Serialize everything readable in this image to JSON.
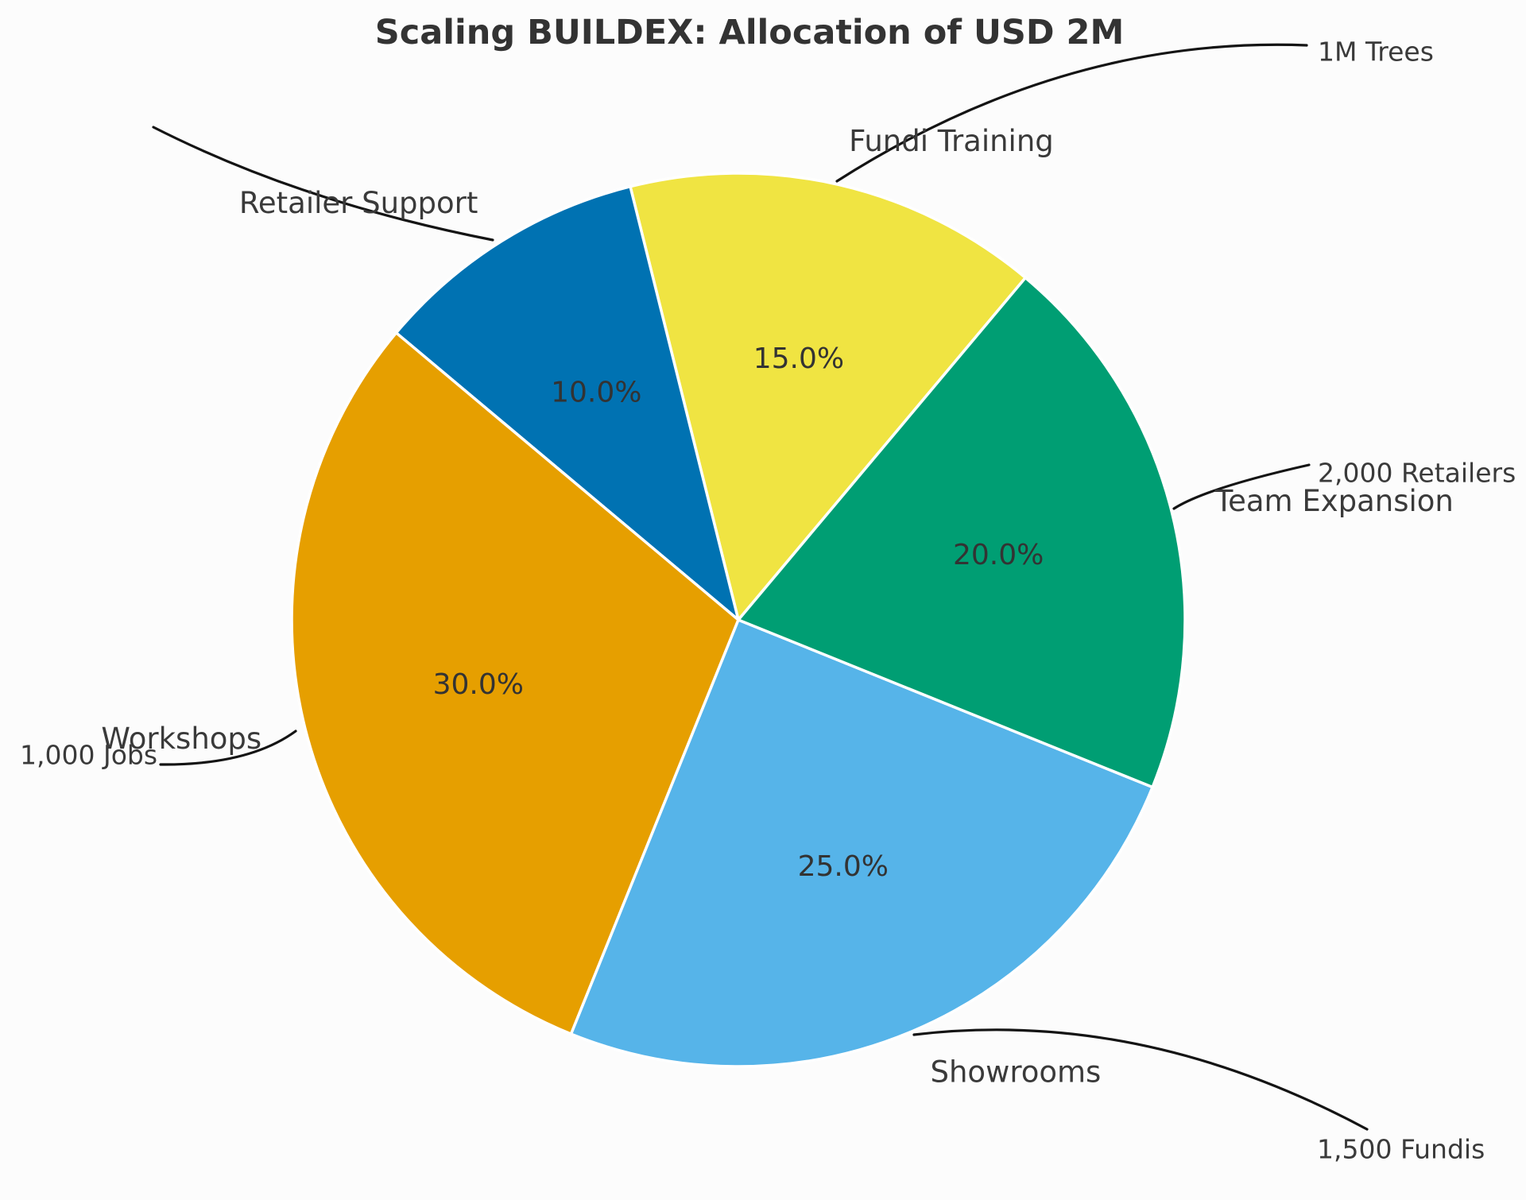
{
  "chart_data": {
    "type": "pie",
    "title": "Scaling BUILDEX: Allocation of USD 2M",
    "legend": "none",
    "start_angle_deg": 50,
    "counterclockwise": true,
    "slices": [
      {
        "label": "Fundi Training",
        "value": 15.0,
        "pct_label": "15.0%",
        "color": "#F0E442"
      },
      {
        "label": "Retailer Support",
        "value": 10.0,
        "pct_label": "10.0%",
        "color": "#0072B2"
      },
      {
        "label": "Workshops",
        "value": 30.0,
        "pct_label": "30.0%",
        "color": "#E69F00"
      },
      {
        "label": "Showrooms",
        "value": 25.0,
        "pct_label": "25.0%",
        "color": "#56B4E9"
      },
      {
        "label": "Team Expansion",
        "value": 20.0,
        "pct_label": "20.0%",
        "color": "#009E73"
      }
    ],
    "annotations": [
      {
        "label": "1M Trees",
        "points_to": "Fundi Training"
      },
      {
        "label": "",
        "points_to": "Retailer Support"
      },
      {
        "label": "2,000 Retailers",
        "points_to": "Team Expansion"
      },
      {
        "label": "1,000 Jobs",
        "points_to": "Workshops"
      },
      {
        "label": "1,500 Fundis",
        "points_to": "Showrooms"
      }
    ],
    "colors": {
      "text": "#3a3a3a",
      "title": "#333333",
      "arrow": "#141414",
      "wedge_border": "#ffffff",
      "background": "#fcfcfc"
    }
  }
}
